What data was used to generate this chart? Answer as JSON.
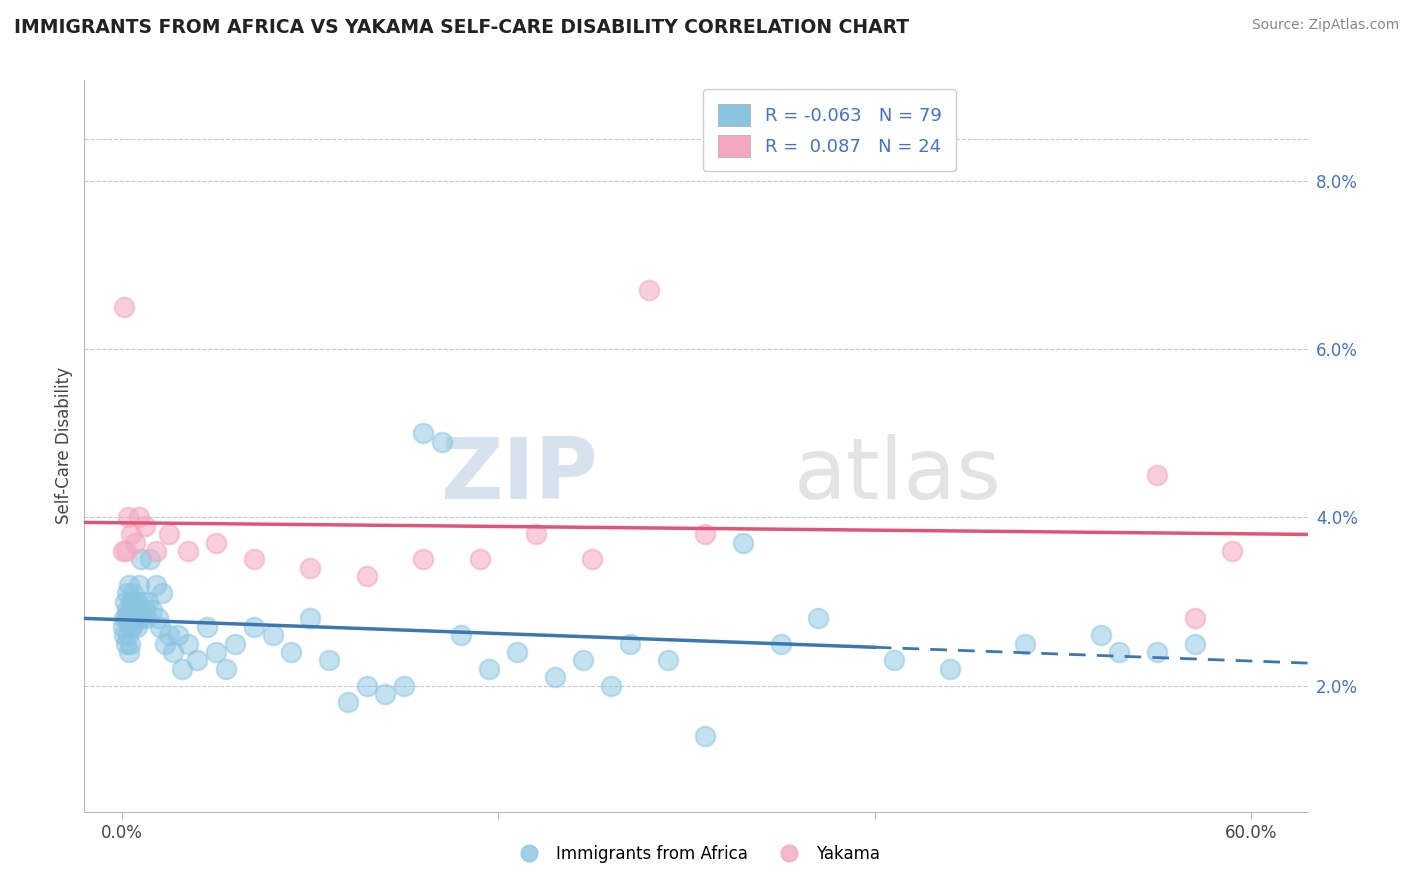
{
  "title": "IMMIGRANTS FROM AFRICA VS YAKAMA SELF-CARE DISABILITY CORRELATION CHART",
  "source": "Source: ZipAtlas.com",
  "ylabel": "Self-Care Disability",
  "legend_label_blue": "Immigrants from Africa",
  "legend_label_pink": "Yakama",
  "ytick_labels": [
    "2.0%",
    "4.0%",
    "6.0%",
    "8.0%"
  ],
  "ytick_values": [
    2.0,
    4.0,
    6.0,
    8.0
  ],
  "xtick_labels": [
    "0.0%",
    "",
    "",
    "60.0%"
  ],
  "xtick_values": [
    0.0,
    20.0,
    40.0,
    60.0
  ],
  "xlim": [
    -2.0,
    63.0
  ],
  "ylim": [
    0.5,
    9.2
  ],
  "blue_color": "#89c4e1",
  "pink_color": "#f4a7c0",
  "blue_line_color": "#3b78b0",
  "pink_line_color": "#e05575",
  "blue_scatter": {
    "x": [
      0.05,
      0.1,
      0.1,
      0.15,
      0.2,
      0.2,
      0.25,
      0.25,
      0.3,
      0.3,
      0.35,
      0.35,
      0.4,
      0.4,
      0.45,
      0.5,
      0.5,
      0.55,
      0.6,
      0.6,
      0.7,
      0.7,
      0.8,
      0.8,
      0.9,
      0.9,
      1.0,
      1.0,
      1.1,
      1.2,
      1.3,
      1.4,
      1.5,
      1.6,
      1.8,
      1.9,
      2.0,
      2.1,
      2.3,
      2.5,
      2.7,
      3.0,
      3.2,
      3.5,
      4.0,
      4.5,
      5.0,
      5.5,
      6.0,
      7.0,
      8.0,
      9.0,
      10.0,
      11.0,
      12.0,
      13.0,
      14.0,
      15.0,
      16.0,
      17.0,
      18.0,
      19.5,
      21.0,
      23.0,
      24.5,
      26.0,
      27.0,
      29.0,
      31.0,
      33.0,
      35.0,
      37.0,
      41.0,
      44.0,
      48.0,
      52.0,
      53.0,
      55.0,
      57.0
    ],
    "y": [
      2.7,
      2.6,
      2.8,
      3.0,
      2.5,
      2.8,
      3.1,
      2.9,
      2.6,
      2.8,
      3.2,
      2.4,
      2.7,
      2.9,
      2.5,
      2.8,
      3.0,
      2.7,
      3.0,
      3.1,
      2.9,
      2.8,
      2.7,
      3.0,
      2.8,
      3.2,
      2.8,
      3.5,
      3.0,
      2.9,
      2.8,
      3.0,
      3.5,
      2.9,
      3.2,
      2.8,
      2.7,
      3.1,
      2.5,
      2.6,
      2.4,
      2.6,
      2.2,
      2.5,
      2.3,
      2.7,
      2.4,
      2.2,
      2.5,
      2.7,
      2.6,
      2.4,
      2.8,
      2.3,
      1.8,
      2.0,
      1.9,
      2.0,
      5.0,
      4.9,
      2.6,
      2.2,
      2.4,
      2.1,
      2.3,
      2.0,
      2.5,
      2.3,
      1.4,
      3.7,
      2.5,
      2.8,
      2.3,
      2.2,
      2.5,
      2.6,
      2.4,
      2.4,
      2.5
    ]
  },
  "pink_scatter": {
    "x": [
      0.05,
      0.1,
      0.2,
      0.3,
      0.5,
      0.7,
      0.9,
      1.2,
      1.8,
      2.5,
      3.5,
      5.0,
      7.0,
      10.0,
      13.0,
      16.0,
      19.0,
      22.0,
      25.0,
      28.0,
      31.0,
      55.0,
      57.0,
      59.0
    ],
    "y": [
      3.6,
      6.5,
      3.6,
      4.0,
      3.8,
      3.7,
      4.0,
      3.9,
      3.6,
      3.8,
      3.6,
      3.7,
      3.5,
      3.4,
      3.3,
      3.5,
      3.5,
      3.8,
      3.5,
      6.7,
      3.8,
      4.5,
      2.8,
      3.6
    ]
  },
  "watermark_zip": "ZIP",
  "watermark_atlas": "atlas",
  "background_color": "#ffffff",
  "grid_color": "#c8c8c8",
  "tick_color": "#4472c4"
}
